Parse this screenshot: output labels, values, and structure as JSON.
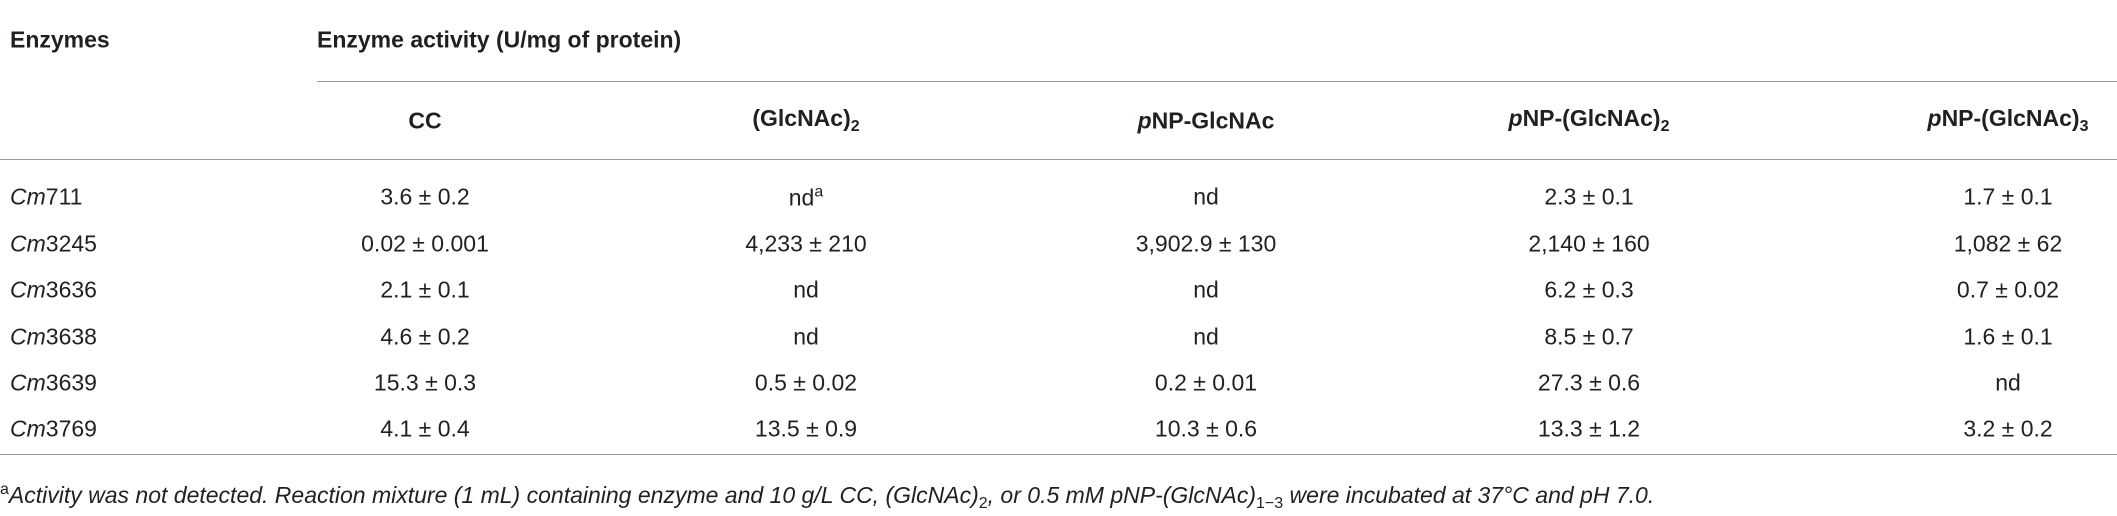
{
  "table": {
    "header": {
      "enzymes": "Enzymes",
      "group": "Enzyme activity (U/mg of protein)",
      "columns": [
        [
          {
            "text": "CC"
          }
        ],
        [
          {
            "text": "(GlcNAc)"
          },
          {
            "text": "2",
            "style": "sub"
          }
        ],
        [
          {
            "text": "p",
            "style": "italic"
          },
          {
            "text": "NP-GlcNAc"
          }
        ],
        [
          {
            "text": "p",
            "style": "italic"
          },
          {
            "text": "NP-(GlcNAc)"
          },
          {
            "text": "2",
            "style": "sub"
          }
        ],
        [
          {
            "text": "p",
            "style": "italic"
          },
          {
            "text": "NP-(GlcNAc)"
          },
          {
            "text": "3",
            "style": "sub"
          }
        ]
      ]
    },
    "rows": [
      {
        "enzyme": [
          {
            "text": "Cm",
            "style": "italic"
          },
          {
            "text": "711"
          }
        ],
        "values": [
          [
            {
              "text": "3.6 ± 0.2"
            }
          ],
          [
            {
              "text": "nd"
            },
            {
              "text": "a",
              "style": "sup"
            }
          ],
          [
            {
              "text": "nd"
            }
          ],
          [
            {
              "text": "2.3 ± 0.1"
            }
          ],
          [
            {
              "text": "1.7 ± 0.1"
            }
          ]
        ]
      },
      {
        "enzyme": [
          {
            "text": "Cm",
            "style": "italic"
          },
          {
            "text": "3245"
          }
        ],
        "values": [
          [
            {
              "text": "0.02 ± 0.001"
            }
          ],
          [
            {
              "text": "4,233 ± 210"
            }
          ],
          [
            {
              "text": "3,902.9 ± 130"
            }
          ],
          [
            {
              "text": "2,140 ± 160"
            }
          ],
          [
            {
              "text": "1,082 ± 62"
            }
          ]
        ]
      },
      {
        "enzyme": [
          {
            "text": "Cm",
            "style": "italic"
          },
          {
            "text": "3636"
          }
        ],
        "values": [
          [
            {
              "text": "2.1 ± 0.1"
            }
          ],
          [
            {
              "text": "nd"
            }
          ],
          [
            {
              "text": "nd"
            }
          ],
          [
            {
              "text": "6.2 ± 0.3"
            }
          ],
          [
            {
              "text": "0.7 ± 0.02"
            }
          ]
        ]
      },
      {
        "enzyme": [
          {
            "text": "Cm",
            "style": "italic"
          },
          {
            "text": "3638"
          }
        ],
        "values": [
          [
            {
              "text": "4.6 ± 0.2"
            }
          ],
          [
            {
              "text": "nd"
            }
          ],
          [
            {
              "text": "nd"
            }
          ],
          [
            {
              "text": "8.5 ± 0.7"
            }
          ],
          [
            {
              "text": "1.6 ± 0.1"
            }
          ]
        ]
      },
      {
        "enzyme": [
          {
            "text": "Cm",
            "style": "italic"
          },
          {
            "text": "3639"
          }
        ],
        "values": [
          [
            {
              "text": "15.3 ± 0.3"
            }
          ],
          [
            {
              "text": "0.5 ± 0.02"
            }
          ],
          [
            {
              "text": "0.2 ± 0.01"
            }
          ],
          [
            {
              "text": "27.3 ± 0.6"
            }
          ],
          [
            {
              "text": "nd"
            }
          ]
        ]
      },
      {
        "enzyme": [
          {
            "text": "Cm",
            "style": "italic"
          },
          {
            "text": "3769"
          }
        ],
        "values": [
          [
            {
              "text": "4.1 ± 0.4"
            }
          ],
          [
            {
              "text": "13.5 ± 0.9"
            }
          ],
          [
            {
              "text": "10.3 ± 0.6"
            }
          ],
          [
            {
              "text": "13.3 ± 1.2"
            }
          ],
          [
            {
              "text": "3.2 ± 0.2"
            }
          ]
        ]
      }
    ],
    "footnote": [
      {
        "text": "a",
        "style": "sup"
      },
      {
        "text": "Activity was not detected. Reaction mixture (1 mL) containing enzyme and 10 g/L CC, (GlcNAc)",
        "style": "italic"
      },
      {
        "text": "2",
        "style": "sub"
      },
      {
        "text": ", or 0.5 mM pNP-(GlcNAc)",
        "style": "italic"
      },
      {
        "text": "1−3",
        "style": "sub"
      },
      {
        "text": " were incubated at 37°C and pH 7.0.",
        "style": "italic"
      }
    ]
  }
}
